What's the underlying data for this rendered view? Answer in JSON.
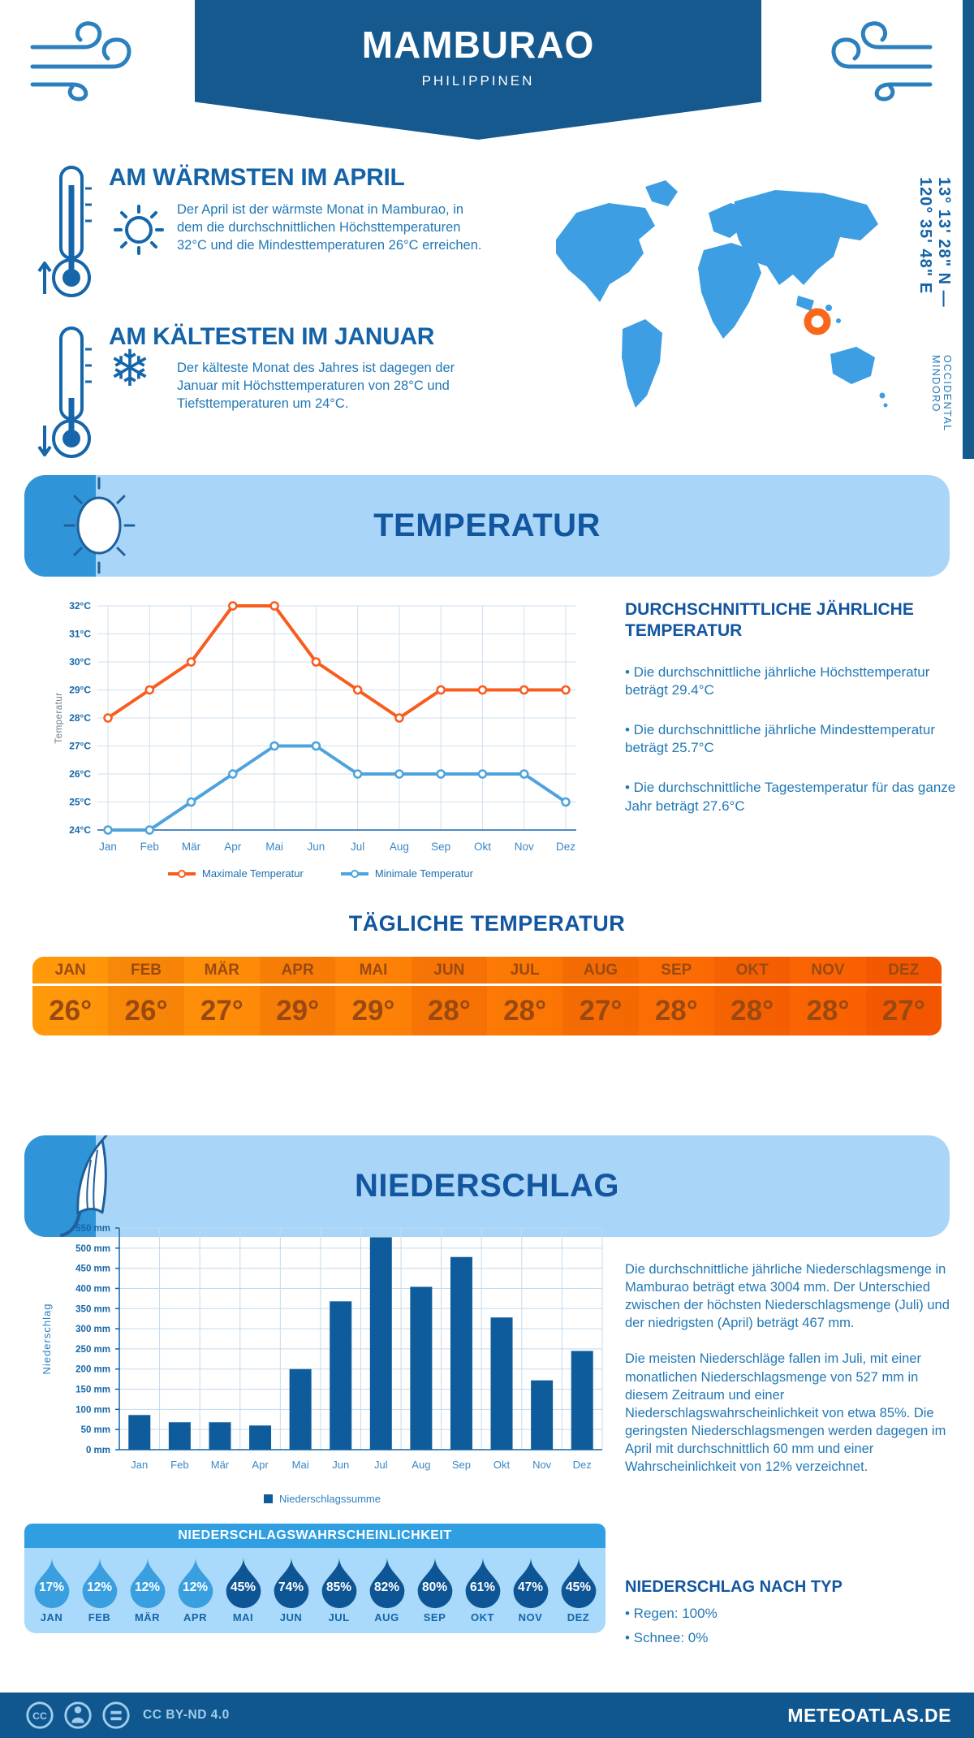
{
  "header": {
    "title": "MAMBURAO",
    "subtitle": "PHILIPPINEN"
  },
  "intro": {
    "warmest_heading": "AM WÄRMSTEN IM APRIL",
    "warmest_text": "Der April ist der wärmste Monat in Mamburao, in dem die durchschnittlichen Höchsttemperaturen 32°C und die Mindesttemperaturen 26°C erreichen.",
    "coldest_heading": "AM KÄLTESTEN IM JANUAR",
    "coldest_text": "Der kälteste Monat des Jahres ist dagegen der Januar mit Höchsttemperaturen von 28°C und Tiefsttemperaturen um 24°C."
  },
  "location": {
    "coordinates": "13° 13' 28\" N — 120° 35' 48\" E",
    "region": "OCCIDENTAL MINDORO"
  },
  "temperature": {
    "banner": "TEMPERATUR",
    "stats_heading": "DURCHSCHNITTLICHE JÄHRLICHE TEMPERATUR",
    "stats": [
      "• Die durchschnittliche jährliche Höchsttemperatur beträgt 29.4°C",
      "• Die durchschnittliche jährliche Mindesttemperatur beträgt 25.7°C",
      "• Die durchschnittliche Tagestemperatur für das ganze Jahr beträgt 27.6°C"
    ],
    "daily_heading": "TÄGLICHE TEMPERATUR",
    "daily_months": [
      "JAN",
      "FEB",
      "MÄR",
      "APR",
      "MAI",
      "JUN",
      "JUL",
      "AUG",
      "SEP",
      "OKT",
      "NOV",
      "DEZ"
    ],
    "daily_values": [
      "26°",
      "26°",
      "27°",
      "29°",
      "29°",
      "28°",
      "28°",
      "27°",
      "28°",
      "28°",
      "28°",
      "27°"
    ]
  },
  "precipitation": {
    "banner": "NIEDERSCHLAG",
    "text1": "Die durchschnittliche jährliche Niederschlagsmenge in Mamburao beträgt etwa 3004 mm. Der Unterschied zwischen der höchsten Niederschlagsmenge (Juli) und der niedrigsten (April) beträgt 467 mm.",
    "text2": "Die meisten Niederschläge fallen im Juli, mit einer monatlichen Niederschlagsmenge von 527 mm in diesem Zeitraum und einer Niederschlagswahrscheinlichkeit von etwa 85%. Die geringsten Niederschlagsmengen werden dagegen im April mit durchschnittlich 60 mm und einer Wahrscheinlichkeit von 12% verzeichnet.",
    "type_heading": "NIEDERSCHLAG NACH TYP",
    "types": [
      "• Regen: 100%",
      "• Schnee: 0%"
    ]
  },
  "probability": {
    "heading": "NIEDERSCHLAGSWAHRSCHEINLICHKEIT",
    "months": [
      "JAN",
      "FEB",
      "MÄR",
      "APR",
      "MAI",
      "JUN",
      "JUL",
      "AUG",
      "SEP",
      "OKT",
      "NOV",
      "DEZ"
    ],
    "values": [
      "17%",
      "12%",
      "12%",
      "12%",
      "45%",
      "74%",
      "85%",
      "82%",
      "80%",
      "61%",
      "47%",
      "45%"
    ],
    "light_color": "#3a9fdf",
    "dark_color": "#0d5595",
    "light_count": 4
  },
  "footer": {
    "license": "CC BY-ND 4.0",
    "site": "METEOATLAS.DE"
  },
  "colors": {
    "header_blue": "#15598f",
    "heading_blue": "#1463a8",
    "body_blue": "#2278b5",
    "banner_bg": "#a9d6f8",
    "banner_accent": "#2f94d8",
    "map_blue": "#3d9ee3",
    "marker_orange": "#f8671a",
    "table_text": "#9a4a10",
    "footer_blue": "#11578f"
  },
  "chart_data": [
    {
      "type": "line",
      "categories": [
        "Jan",
        "Feb",
        "Mär",
        "Apr",
        "Mai",
        "Jun",
        "Jul",
        "Aug",
        "Sep",
        "Okt",
        "Nov",
        "Dez"
      ],
      "series": [
        {
          "name": "Maximale Temperatur",
          "values": [
            28,
            29,
            30,
            32,
            32,
            30,
            29,
            28,
            29,
            29,
            29,
            29
          ],
          "color": "#f85c1f"
        },
        {
          "name": "Minimale Temperatur",
          "values": [
            24,
            24,
            25,
            26,
            27,
            27,
            26,
            26,
            26,
            26,
            26,
            25
          ],
          "color": "#4da3dd"
        }
      ],
      "ylabel": "Temperatur",
      "ylim": [
        24,
        32
      ],
      "ytick_suffix": "°C",
      "grid": true,
      "legend_position": "bottom"
    },
    {
      "type": "bar",
      "categories": [
        "Jan",
        "Feb",
        "Mär",
        "Apr",
        "Mai",
        "Jun",
        "Jul",
        "Aug",
        "Sep",
        "Okt",
        "Nov",
        "Dez"
      ],
      "values": [
        86,
        68,
        68,
        60,
        200,
        368,
        527,
        404,
        478,
        328,
        172,
        245
      ],
      "ylabel": "Niederschlag",
      "ylim": [
        0,
        550
      ],
      "ytick_step": 50,
      "ytick_suffix": " mm",
      "bar_color": "#0f5c9c",
      "legend": "Niederschlagssumme",
      "grid": true
    }
  ]
}
